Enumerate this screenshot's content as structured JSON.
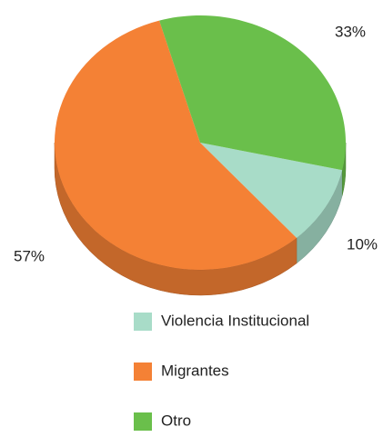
{
  "chart_data": {
    "type": "pie",
    "categories": [
      "Violencia Institucional",
      "Migrantes",
      "Otro"
    ],
    "values": [
      10,
      57,
      33
    ],
    "value_labels": [
      "10%",
      "57%",
      "33%"
    ],
    "colors": [
      "#a8dcc8",
      "#f48135",
      "#6abf4b"
    ]
  }
}
